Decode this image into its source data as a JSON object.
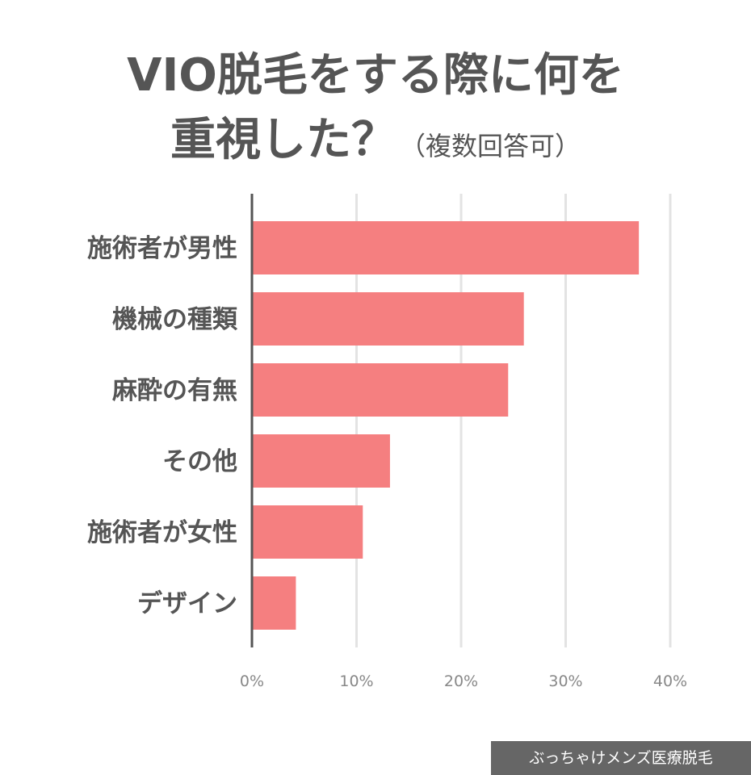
{
  "title": {
    "line1": "VIO脱毛をする際に何を",
    "line2": "重視した？",
    "note": "（複数回答可）"
  },
  "watermark": "ぶっちゃけメンズ医療脱毛",
  "colors": {
    "bar": "#f57f80",
    "grid": "#e3e3e3",
    "axis": "#555555",
    "text": "#555555",
    "tick_text": "#888888",
    "watermark_bg": "#666666"
  },
  "chart_data": {
    "type": "bar",
    "orientation": "horizontal",
    "categories": [
      "施術者が男性",
      "機械の種類",
      "麻酔の有無",
      "その他",
      "施術者が女性",
      "デザイン"
    ],
    "values": [
      37,
      26,
      24.5,
      13.2,
      10.6,
      4.2
    ],
    "xlim": [
      0,
      40
    ],
    "xticks": [
      0,
      10,
      20,
      30,
      40
    ],
    "xtick_labels": [
      "0%",
      "10%",
      "20%",
      "30%",
      "40%"
    ],
    "grid": true
  }
}
